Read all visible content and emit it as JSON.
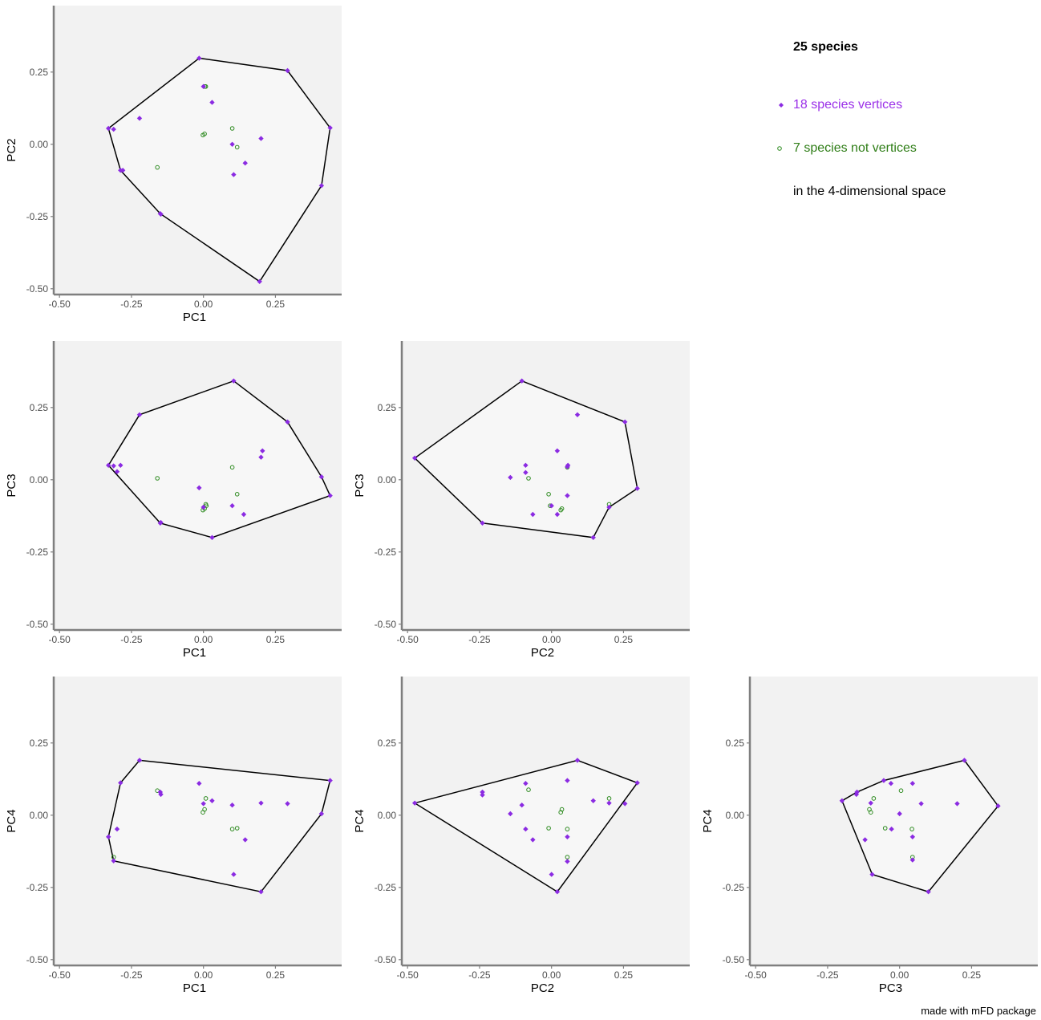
{
  "colors": {
    "panel_bg": "#f2f2f2",
    "hull_fill": "#f7f7f7",
    "hull_stroke": "#000000",
    "vertex": "#8b2be2",
    "nonvertex": "#2e8b20",
    "axis": "#7f7f7f",
    "vertex_text": "#9b30e8",
    "nonvertex_text": "#2e7d16"
  },
  "legend": {
    "title": "25 species",
    "vertices_label": "18 species vertices",
    "nonvertices_label": "7 species not vertices",
    "space_label": "in the 4-dimensional space"
  },
  "footer": "made with mFD package",
  "chart_data": [
    {
      "type": "scatter",
      "xlabel": "PC1",
      "ylabel": "PC2",
      "xlim": [
        -0.52,
        0.48
      ],
      "ylim": [
        -0.52,
        0.48
      ],
      "ticks": [
        -0.5,
        -0.25,
        0.0,
        0.25
      ],
      "tick_labels": [
        "-0.50",
        "-0.25",
        "0.00",
        "0.25"
      ],
      "hull": [
        [
          -0.015,
          0.298
        ],
        [
          0.292,
          0.255
        ],
        [
          0.44,
          0.057
        ],
        [
          0.41,
          -0.143
        ],
        [
          0.195,
          -0.475
        ],
        [
          -0.15,
          -0.24
        ],
        [
          -0.288,
          -0.09
        ],
        [
          -0.33,
          0.055
        ]
      ],
      "vertices": [
        [
          -0.015,
          0.298
        ],
        [
          0.292,
          0.255
        ],
        [
          0.44,
          0.057
        ],
        [
          0.41,
          -0.143
        ],
        [
          0.195,
          -0.475
        ],
        [
          -0.15,
          -0.24
        ],
        [
          -0.288,
          -0.09
        ],
        [
          -0.33,
          0.055
        ],
        [
          -0.28,
          -0.09
        ],
        [
          -0.312,
          0.052
        ],
        [
          -0.222,
          0.09
        ],
        [
          0.0,
          0.2
        ],
        [
          0.03,
          0.145
        ],
        [
          0.1,
          0.0
        ],
        [
          0.2,
          0.02
        ],
        [
          0.145,
          -0.065
        ],
        [
          0.105,
          -0.105
        ],
        [
          -0.148,
          -0.242
        ]
      ],
      "nonvertices": [
        [
          0.008,
          0.2
        ],
        [
          -0.002,
          0.032
        ],
        [
          0.004,
          0.036
        ],
        [
          0.1,
          0.055
        ],
        [
          0.117,
          -0.01
        ],
        [
          -0.16,
          -0.08
        ],
        [
          0.005,
          0.2
        ]
      ]
    },
    {
      "type": "scatter",
      "xlabel": "PC1",
      "ylabel": "PC3",
      "xlim": [
        -0.52,
        0.48
      ],
      "ylim": [
        -0.52,
        0.48
      ],
      "ticks": [
        -0.5,
        -0.25,
        0.0,
        0.25
      ],
      "tick_labels": [
        "-0.50",
        "-0.25",
        "0.00",
        "0.25"
      ],
      "hull": [
        [
          0.105,
          0.342
        ],
        [
          0.292,
          0.2
        ],
        [
          0.41,
          0.01
        ],
        [
          0.44,
          -0.055
        ],
        [
          0.03,
          -0.2
        ],
        [
          -0.15,
          -0.15
        ],
        [
          -0.33,
          0.05
        ],
        [
          -0.222,
          0.225
        ]
      ],
      "vertices": [
        [
          0.105,
          0.342
        ],
        [
          0.292,
          0.2
        ],
        [
          0.41,
          0.01
        ],
        [
          0.44,
          -0.055
        ],
        [
          0.03,
          -0.2
        ],
        [
          -0.15,
          -0.15
        ],
        [
          -0.33,
          0.05
        ],
        [
          -0.222,
          0.225
        ],
        [
          -0.312,
          0.048
        ],
        [
          -0.288,
          0.05
        ],
        [
          -0.3,
          0.028
        ],
        [
          -0.015,
          -0.028
        ],
        [
          0.0,
          -0.095
        ],
        [
          0.1,
          -0.09
        ],
        [
          0.14,
          -0.12
        ],
        [
          0.2,
          0.078
        ],
        [
          0.205,
          0.1
        ],
        [
          -0.148,
          -0.148
        ]
      ],
      "nonvertices": [
        [
          -0.16,
          0.005
        ],
        [
          0.1,
          0.043
        ],
        [
          0.117,
          -0.05
        ],
        [
          0.008,
          -0.085
        ],
        [
          -0.002,
          -0.105
        ],
        [
          0.004,
          -0.1
        ],
        [
          0.01,
          -0.09
        ]
      ]
    },
    {
      "type": "scatter",
      "xlabel": "PC2",
      "ylabel": "PC3",
      "xlim": [
        -0.52,
        0.48
      ],
      "ylim": [
        -0.52,
        0.48
      ],
      "ticks": [
        -0.5,
        -0.25,
        0.0,
        0.25
      ],
      "tick_labels": [
        "-0.50",
        "-0.25",
        "0.00",
        "0.25"
      ],
      "hull": [
        [
          -0.103,
          0.342
        ],
        [
          0.255,
          0.2
        ],
        [
          0.298,
          -0.03
        ],
        [
          0.2,
          -0.095
        ],
        [
          0.145,
          -0.2
        ],
        [
          -0.24,
          -0.15
        ],
        [
          -0.475,
          0.075
        ]
      ],
      "vertices": [
        [
          -0.103,
          0.342
        ],
        [
          0.255,
          0.2
        ],
        [
          0.298,
          -0.03
        ],
        [
          0.2,
          -0.095
        ],
        [
          0.145,
          -0.2
        ],
        [
          -0.24,
          -0.15
        ],
        [
          -0.475,
          0.075
        ],
        [
          0.09,
          0.225
        ],
        [
          0.02,
          0.1
        ],
        [
          0.057,
          0.05
        ],
        [
          0.055,
          -0.055
        ],
        [
          -0.143,
          0.008
        ],
        [
          -0.09,
          0.05
        ],
        [
          -0.09,
          0.025
        ],
        [
          0.0,
          -0.09
        ],
        [
          -0.065,
          -0.12
        ],
        [
          0.02,
          -0.12
        ],
        [
          0.055,
          0.045
        ]
      ],
      "nonvertices": [
        [
          -0.08,
          0.005
        ],
        [
          0.055,
          0.043
        ],
        [
          -0.01,
          -0.05
        ],
        [
          0.2,
          -0.085
        ],
        [
          0.032,
          -0.105
        ],
        [
          0.036,
          -0.1
        ],
        [
          -0.005,
          -0.09
        ]
      ]
    },
    {
      "type": "scatter",
      "xlabel": "PC1",
      "ylabel": "PC4",
      "xlim": [
        -0.52,
        0.48
      ],
      "ylim": [
        -0.52,
        0.48
      ],
      "ticks": [
        -0.5,
        -0.25,
        0.0,
        0.25
      ],
      "tick_labels": [
        "-0.50",
        "-0.25",
        "0.00",
        "0.25"
      ],
      "hull": [
        [
          -0.222,
          0.19
        ],
        [
          0.44,
          0.12
        ],
        [
          0.41,
          0.005
        ],
        [
          0.2,
          -0.265
        ],
        [
          -0.312,
          -0.158
        ],
        [
          -0.33,
          -0.075
        ],
        [
          -0.288,
          0.112
        ]
      ],
      "vertices": [
        [
          -0.222,
          0.19
        ],
        [
          0.44,
          0.12
        ],
        [
          0.41,
          0.005
        ],
        [
          0.2,
          -0.265
        ],
        [
          -0.312,
          -0.158
        ],
        [
          -0.33,
          -0.075
        ],
        [
          -0.288,
          0.112
        ],
        [
          -0.3,
          -0.048
        ],
        [
          -0.015,
          0.11
        ],
        [
          -0.15,
          0.08
        ],
        [
          -0.148,
          0.072
        ],
        [
          0.0,
          0.04
        ],
        [
          0.03,
          0.05
        ],
        [
          0.1,
          0.035
        ],
        [
          0.2,
          0.042
        ],
        [
          0.292,
          0.04
        ],
        [
          0.145,
          -0.085
        ],
        [
          0.105,
          -0.205
        ]
      ],
      "nonvertices": [
        [
          -0.16,
          0.085
        ],
        [
          0.008,
          0.058
        ],
        [
          0.1,
          -0.048
        ],
        [
          0.117,
          -0.045
        ],
        [
          -0.002,
          0.01
        ],
        [
          0.004,
          0.02
        ],
        [
          -0.312,
          -0.145
        ]
      ]
    },
    {
      "type": "scatter",
      "xlabel": "PC2",
      "ylabel": "PC4",
      "xlim": [
        -0.52,
        0.48
      ],
      "ylim": [
        -0.52,
        0.48
      ],
      "ticks": [
        -0.5,
        -0.25,
        0.0,
        0.25
      ],
      "tick_labels": [
        "-0.50",
        "-0.25",
        "0.00",
        "0.25"
      ],
      "hull": [
        [
          -0.475,
          0.042
        ],
        [
          0.09,
          0.19
        ],
        [
          0.298,
          0.112
        ],
        [
          0.02,
          -0.265
        ]
      ],
      "vertices": [
        [
          -0.475,
          0.042
        ],
        [
          0.09,
          0.19
        ],
        [
          0.298,
          0.112
        ],
        [
          0.02,
          -0.265
        ],
        [
          -0.24,
          0.08
        ],
        [
          -0.24,
          0.07
        ],
        [
          -0.09,
          0.11
        ],
        [
          -0.103,
          0.035
        ],
        [
          -0.143,
          0.005
        ],
        [
          -0.09,
          -0.048
        ],
        [
          -0.065,
          -0.085
        ],
        [
          0.055,
          0.12
        ],
        [
          0.145,
          0.05
        ],
        [
          0.255,
          0.04
        ],
        [
          0.2,
          0.042
        ],
        [
          0.055,
          -0.075
        ],
        [
          0.055,
          -0.16
        ],
        [
          0.0,
          -0.205
        ]
      ],
      "nonvertices": [
        [
          -0.08,
          0.088
        ],
        [
          0.2,
          0.058
        ],
        [
          0.036,
          0.02
        ],
        [
          0.032,
          0.01
        ],
        [
          -0.01,
          -0.045
        ],
        [
          0.055,
          -0.048
        ],
        [
          0.055,
          -0.145
        ]
      ]
    },
    {
      "type": "scatter",
      "xlabel": "PC3",
      "ylabel": "PC4",
      "xlim": [
        -0.52,
        0.48
      ],
      "ylim": [
        -0.52,
        0.48
      ],
      "ticks": [
        -0.5,
        -0.25,
        0.0,
        0.25
      ],
      "tick_labels": [
        "-0.50",
        "-0.25",
        "0.00",
        "0.25"
      ],
      "hull": [
        [
          -0.2,
          0.05
        ],
        [
          -0.148,
          0.08
        ],
        [
          -0.055,
          0.12
        ],
        [
          0.225,
          0.19
        ],
        [
          0.342,
          0.032
        ],
        [
          0.1,
          -0.265
        ],
        [
          -0.095,
          -0.205
        ]
      ],
      "vertices": [
        [
          -0.2,
          0.05
        ],
        [
          -0.148,
          0.08
        ],
        [
          -0.055,
          0.12
        ],
        [
          0.225,
          0.19
        ],
        [
          0.342,
          0.032
        ],
        [
          0.1,
          -0.265
        ],
        [
          -0.095,
          -0.205
        ],
        [
          -0.15,
          0.072
        ],
        [
          -0.12,
          -0.085
        ],
        [
          -0.03,
          0.11
        ],
        [
          0.045,
          0.11
        ],
        [
          -0.1,
          0.042
        ],
        [
          0.0,
          0.005
        ],
        [
          0.075,
          0.04
        ],
        [
          0.2,
          0.04
        ],
        [
          -0.028,
          -0.048
        ],
        [
          0.045,
          -0.075
        ],
        [
          0.045,
          -0.155
        ]
      ],
      "nonvertices": [
        [
          0.005,
          0.085
        ],
        [
          -0.09,
          0.058
        ],
        [
          -0.1,
          0.01
        ],
        [
          -0.105,
          0.02
        ],
        [
          -0.05,
          -0.045
        ],
        [
          0.043,
          -0.048
        ],
        [
          0.045,
          -0.145
        ]
      ]
    }
  ]
}
